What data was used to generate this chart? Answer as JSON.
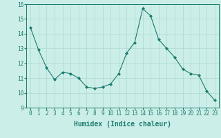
{
  "x": [
    0,
    1,
    2,
    3,
    4,
    5,
    6,
    7,
    8,
    9,
    10,
    11,
    12,
    13,
    14,
    15,
    16,
    17,
    18,
    19,
    20,
    21,
    22,
    23
  ],
  "y": [
    14.4,
    12.9,
    11.7,
    10.9,
    11.4,
    11.3,
    11.0,
    10.4,
    10.3,
    10.4,
    10.6,
    11.3,
    12.7,
    13.4,
    15.7,
    15.2,
    13.6,
    13.0,
    12.4,
    11.6,
    11.3,
    11.2,
    10.1,
    9.5
  ],
  "line_color": "#1a7a6e",
  "marker": "D",
  "marker_size": 2,
  "bg_color": "#cceee8",
  "grid_color": "#aad8d0",
  "xlabel": "Humidex (Indice chaleur)",
  "xlim": [
    -0.5,
    23.5
  ],
  "ylim": [
    9,
    16
  ],
  "yticks": [
    9,
    10,
    11,
    12,
    13,
    14,
    15,
    16
  ],
  "xticks": [
    0,
    1,
    2,
    3,
    4,
    5,
    6,
    7,
    8,
    9,
    10,
    11,
    12,
    13,
    14,
    15,
    16,
    17,
    18,
    19,
    20,
    21,
    22,
    23
  ],
  "xlabel_fontsize": 7,
  "tick_fontsize": 5.5
}
